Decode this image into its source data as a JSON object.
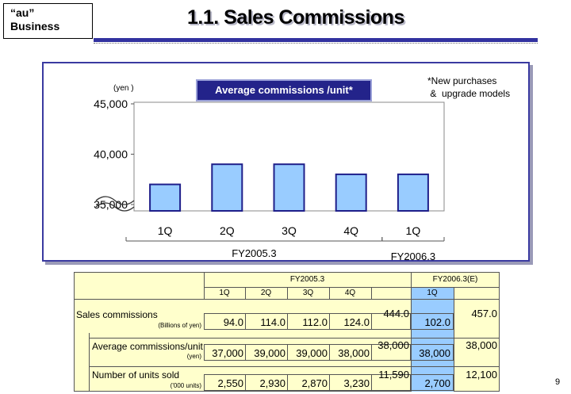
{
  "badge": {
    "line1": "“au”",
    "line2": "Business"
  },
  "page_title": "1.1. Sales Commissions",
  "chart_data": {
    "type": "bar",
    "title": "Average commissions /unit*",
    "ylabel": "(yen )",
    "note": "*New purchases\n &  upgrade models",
    "categories": [
      "1Q",
      "2Q",
      "3Q",
      "4Q",
      "1Q"
    ],
    "groups": [
      {
        "label": "FY2005.3",
        "categories": [
          "1Q",
          "2Q",
          "3Q",
          "4Q"
        ]
      },
      {
        "label": "FY2006.3",
        "categories": [
          "1Q"
        ]
      }
    ],
    "values": [
      37000,
      39000,
      39000,
      38000,
      38000
    ],
    "yticks": [
      "45,000",
      "40,000",
      "35,000"
    ],
    "ytick_values": [
      45000,
      40000,
      35000
    ],
    "ylim": [
      35000,
      45000
    ],
    "axis_break": true,
    "grid": false,
    "colors": {
      "bar_fill": "#99ccff",
      "bar_stroke": "#1f1f8a",
      "plot_bg": "#ffffff",
      "panel_border": "#3a3aa0",
      "heading_bg": "#23238a"
    }
  },
  "table": {
    "fy2005_label": "FY2005.3",
    "fy2006_label": "FY2006.3(E)",
    "quarters": [
      "1Q",
      "2Q",
      "3Q",
      "4Q"
    ],
    "fy2006_quarter": "1Q",
    "rows": [
      {
        "label": "Sales commissions",
        "unit": "(Billions of yen)",
        "quarters": [
          "94.0",
          "114.0",
          "112.0",
          "124.0"
        ],
        "fy2005_total": "444.0",
        "fy2006_q1": "102.0",
        "fy2006_total": "457.0"
      },
      {
        "label": "Average commissions/unit",
        "unit": "(yen)",
        "quarters": [
          "37,000",
          "39,000",
          "39,000",
          "38,000"
        ],
        "fy2005_total": "38,000",
        "fy2006_q1": "38,000",
        "fy2006_total": "38,000"
      },
      {
        "label": "Number of units sold",
        "unit": "('000 units)",
        "quarters": [
          "2,550",
          "2,930",
          "2,870",
          "3,230"
        ],
        "fy2005_total": "11,590",
        "fy2006_q1": "2,700",
        "fy2006_total": "12,100"
      }
    ],
    "colors": {
      "body_bg": "#ffffcc",
      "highlight_col": "#99ccff"
    }
  },
  "page_number": "9"
}
